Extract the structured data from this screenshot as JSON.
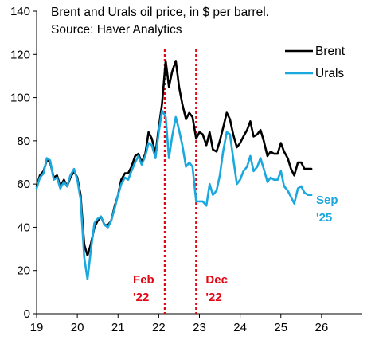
{
  "chart_data": {
    "type": "line",
    "title_lines": [
      "Brent and Urals oil price, in $ per barrel.",
      "Source: Haver Analytics"
    ],
    "xlabel": "",
    "ylabel": "",
    "xlim": [
      2019.0,
      2027.0
    ],
    "ylim": [
      0,
      140
    ],
    "yticks": [
      0,
      20,
      40,
      60,
      80,
      100,
      120,
      140
    ],
    "yticklabels": [
      "0",
      "20",
      "40",
      "60",
      "80",
      "100",
      "120",
      "140"
    ],
    "xticks": [
      2019,
      2020,
      2021,
      2022,
      2023,
      2024,
      2025,
      2026
    ],
    "xticklabels": [
      "19",
      "20",
      "21",
      "22",
      "23",
      "24",
      "25",
      "26"
    ],
    "grid": false,
    "legend_position": "top-right",
    "series": [
      {
        "name": "Brent",
        "color": "#000000",
        "points": [
          [
            2019.0,
            59
          ],
          [
            2019.08,
            64
          ],
          [
            2019.17,
            66
          ],
          [
            2019.25,
            71
          ],
          [
            2019.33,
            70
          ],
          [
            2019.42,
            63
          ],
          [
            2019.5,
            64
          ],
          [
            2019.58,
            59
          ],
          [
            2019.67,
            62
          ],
          [
            2019.75,
            59
          ],
          [
            2019.83,
            63
          ],
          [
            2019.92,
            66
          ],
          [
            2020.0,
            63
          ],
          [
            2020.08,
            55
          ],
          [
            2020.17,
            32
          ],
          [
            2020.25,
            27
          ],
          [
            2020.33,
            32
          ],
          [
            2020.42,
            40
          ],
          [
            2020.5,
            43
          ],
          [
            2020.58,
            45
          ],
          [
            2020.67,
            41
          ],
          [
            2020.75,
            41
          ],
          [
            2020.83,
            43
          ],
          [
            2020.92,
            50
          ],
          [
            2021.0,
            55
          ],
          [
            2021.08,
            62
          ],
          [
            2021.17,
            65
          ],
          [
            2021.25,
            65
          ],
          [
            2021.33,
            68
          ],
          [
            2021.42,
            73
          ],
          [
            2021.5,
            74
          ],
          [
            2021.58,
            70
          ],
          [
            2021.67,
            74
          ],
          [
            2021.75,
            84
          ],
          [
            2021.83,
            81
          ],
          [
            2021.92,
            74
          ],
          [
            2022.0,
            86
          ],
          [
            2022.08,
            97
          ],
          [
            2022.17,
            117
          ],
          [
            2022.25,
            105
          ],
          [
            2022.33,
            112
          ],
          [
            2022.42,
            117
          ],
          [
            2022.5,
            105
          ],
          [
            2022.58,
            97
          ],
          [
            2022.67,
            90
          ],
          [
            2022.75,
            93
          ],
          [
            2022.83,
            91
          ],
          [
            2022.92,
            81
          ],
          [
            2023.0,
            84
          ],
          [
            2023.08,
            83
          ],
          [
            2023.17,
            78
          ],
          [
            2023.25,
            84
          ],
          [
            2023.33,
            76
          ],
          [
            2023.42,
            75
          ],
          [
            2023.5,
            80
          ],
          [
            2023.58,
            86
          ],
          [
            2023.67,
            93
          ],
          [
            2023.75,
            90
          ],
          [
            2023.83,
            83
          ],
          [
            2023.92,
            77
          ],
          [
            2024.0,
            79
          ],
          [
            2024.08,
            82
          ],
          [
            2024.17,
            85
          ],
          [
            2024.25,
            89
          ],
          [
            2024.33,
            82
          ],
          [
            2024.42,
            83
          ],
          [
            2024.5,
            85
          ],
          [
            2024.58,
            80
          ],
          [
            2024.67,
            73
          ],
          [
            2024.75,
            75
          ],
          [
            2024.83,
            74
          ],
          [
            2024.92,
            74
          ],
          [
            2025.0,
            79
          ],
          [
            2025.08,
            75
          ],
          [
            2025.17,
            72
          ],
          [
            2025.25,
            67
          ],
          [
            2025.33,
            64
          ],
          [
            2025.42,
            70
          ],
          [
            2025.5,
            70
          ],
          [
            2025.58,
            67
          ],
          [
            2025.67,
            67
          ],
          [
            2025.75,
            67
          ]
        ]
      },
      {
        "name": "Urals",
        "color": "#1aa8df",
        "points": [
          [
            2019.0,
            58
          ],
          [
            2019.08,
            63
          ],
          [
            2019.17,
            65
          ],
          [
            2019.25,
            72
          ],
          [
            2019.33,
            71
          ],
          [
            2019.42,
            62
          ],
          [
            2019.5,
            63
          ],
          [
            2019.58,
            58
          ],
          [
            2019.67,
            61
          ],
          [
            2019.75,
            59
          ],
          [
            2019.83,
            64
          ],
          [
            2019.92,
            67
          ],
          [
            2020.0,
            62
          ],
          [
            2020.08,
            53
          ],
          [
            2020.17,
            26
          ],
          [
            2020.25,
            16
          ],
          [
            2020.33,
            29
          ],
          [
            2020.42,
            42
          ],
          [
            2020.5,
            44
          ],
          [
            2020.58,
            45
          ],
          [
            2020.67,
            41
          ],
          [
            2020.75,
            40
          ],
          [
            2020.83,
            43
          ],
          [
            2020.92,
            49
          ],
          [
            2021.0,
            55
          ],
          [
            2021.08,
            60
          ],
          [
            2021.17,
            63
          ],
          [
            2021.25,
            62
          ],
          [
            2021.33,
            66
          ],
          [
            2021.42,
            70
          ],
          [
            2021.5,
            73
          ],
          [
            2021.58,
            69
          ],
          [
            2021.67,
            73
          ],
          [
            2021.75,
            79
          ],
          [
            2021.83,
            78
          ],
          [
            2021.92,
            72
          ],
          [
            2022.0,
            84
          ],
          [
            2022.08,
            94
          ],
          [
            2022.17,
            91
          ],
          [
            2022.25,
            72
          ],
          [
            2022.33,
            82
          ],
          [
            2022.42,
            91
          ],
          [
            2022.5,
            85
          ],
          [
            2022.58,
            78
          ],
          [
            2022.67,
            68
          ],
          [
            2022.75,
            70
          ],
          [
            2022.83,
            68
          ],
          [
            2022.92,
            52
          ],
          [
            2023.0,
            52
          ],
          [
            2023.08,
            52
          ],
          [
            2023.17,
            50
          ],
          [
            2023.25,
            60
          ],
          [
            2023.33,
            55
          ],
          [
            2023.42,
            57
          ],
          [
            2023.5,
            64
          ],
          [
            2023.58,
            75
          ],
          [
            2023.67,
            84
          ],
          [
            2023.75,
            83
          ],
          [
            2023.83,
            72
          ],
          [
            2023.92,
            60
          ],
          [
            2024.0,
            62
          ],
          [
            2024.08,
            66
          ],
          [
            2024.17,
            68
          ],
          [
            2024.25,
            73
          ],
          [
            2024.33,
            66
          ],
          [
            2024.42,
            68
          ],
          [
            2024.5,
            72
          ],
          [
            2024.58,
            67
          ],
          [
            2024.67,
            61
          ],
          [
            2024.75,
            63
          ],
          [
            2024.83,
            62
          ],
          [
            2024.92,
            62
          ],
          [
            2025.0,
            66
          ],
          [
            2025.08,
            59
          ],
          [
            2025.17,
            57
          ],
          [
            2025.25,
            54
          ],
          [
            2025.33,
            51
          ],
          [
            2025.42,
            58
          ],
          [
            2025.5,
            59
          ],
          [
            2025.58,
            56
          ],
          [
            2025.67,
            55
          ],
          [
            2025.75,
            55
          ]
        ]
      }
    ],
    "vlines": [
      {
        "x": 2022.15,
        "label_lines": [
          "Feb",
          "'22"
        ],
        "color": "#e30613"
      },
      {
        "x": 2022.92,
        "label_lines": [
          "Dec",
          "'22"
        ],
        "color": "#e30613"
      }
    ],
    "end_label": {
      "series": "Urals",
      "label_lines": [
        "Sep",
        "'25"
      ]
    }
  }
}
